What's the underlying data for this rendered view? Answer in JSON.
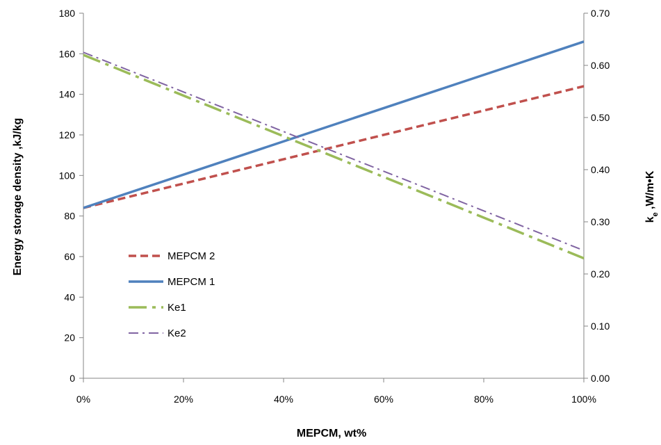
{
  "chart_data": {
    "type": "line",
    "x_tick_labels": [
      "0%",
      "20%",
      "40%",
      "60%",
      "80%",
      "100%"
    ],
    "x_values": [
      0,
      100
    ],
    "xlim": [
      0,
      100
    ],
    "xlabel": "MEPCM, wt%",
    "ylabel_left": "Energy storage density ,kJ/kg",
    "ylim_left": [
      0,
      180
    ],
    "y_left_ticks": [
      "0",
      "20",
      "40",
      "60",
      "80",
      "100",
      "120",
      "140",
      "160",
      "180"
    ],
    "ylabel_right": "ke ,W/m•K",
    "ylabel_right_base": "k",
    "ylabel_right_sub": "e",
    "ylabel_right_rest": " ,W/m•K",
    "ylim_right": [
      0,
      0.7
    ],
    "y_right_ticks": [
      "0.00",
      "0.10",
      "0.20",
      "0.30",
      "0.40",
      "0.50",
      "0.60",
      "0.70"
    ],
    "grid": false,
    "legend_position": "lower-left",
    "series": [
      {
        "name": "MEPCM 2",
        "axis": "left",
        "x": [
          0,
          100
        ],
        "y": [
          84,
          144
        ],
        "color": "#C0504D",
        "style": "dashed"
      },
      {
        "name": "MEPCM 1",
        "axis": "left",
        "x": [
          0,
          100
        ],
        "y": [
          84,
          166
        ],
        "color": "#4F81BD",
        "style": "solid"
      },
      {
        "name": "Ke1",
        "axis": "right",
        "x": [
          0,
          100
        ],
        "y": [
          0.62,
          0.23
        ],
        "color": "#9BBB59",
        "style": "long-dash-dot"
      },
      {
        "name": "Ke2",
        "axis": "right",
        "x": [
          0,
          100
        ],
        "y": [
          0.625,
          0.245
        ],
        "color": "#8064A2",
        "style": "dash-dot"
      }
    ]
  }
}
